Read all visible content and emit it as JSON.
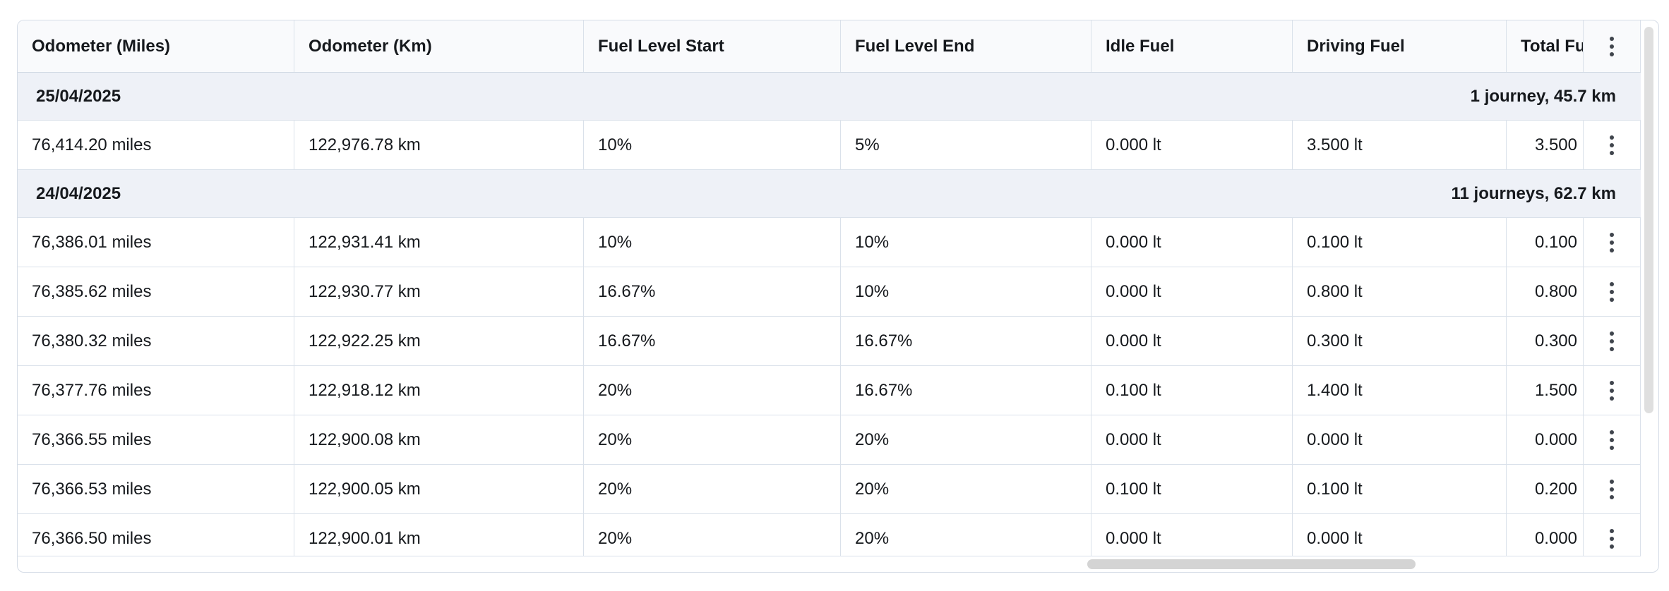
{
  "table": {
    "columns": [
      {
        "label": "Odometer (Miles)"
      },
      {
        "label": "Odometer (Km)"
      },
      {
        "label": "Fuel Level Start"
      },
      {
        "label": "Fuel Level End"
      },
      {
        "label": "Idle Fuel"
      },
      {
        "label": "Driving Fuel"
      },
      {
        "label": "Total Fuel"
      }
    ],
    "groups": [
      {
        "date": "25/04/2025",
        "summary": "1 journey, 45.7 km",
        "rows": [
          [
            "76,414.20 miles",
            "122,976.78 km",
            "10%",
            "5%",
            "0.000 lt",
            "3.500 lt",
            "3.500"
          ]
        ]
      },
      {
        "date": "24/04/2025",
        "summary": "11 journeys, 62.7 km",
        "rows": [
          [
            "76,386.01 miles",
            "122,931.41 km",
            "10%",
            "10%",
            "0.000 lt",
            "0.100 lt",
            "0.100"
          ],
          [
            "76,385.62 miles",
            "122,930.77 km",
            "16.67%",
            "10%",
            "0.000 lt",
            "0.800 lt",
            "0.800"
          ],
          [
            "76,380.32 miles",
            "122,922.25 km",
            "16.67%",
            "16.67%",
            "0.000 lt",
            "0.300 lt",
            "0.300"
          ],
          [
            "76,377.76 miles",
            "122,918.12 km",
            "20%",
            "16.67%",
            "0.100 lt",
            "1.400 lt",
            "1.500"
          ],
          [
            "76,366.55 miles",
            "122,900.08 km",
            "20%",
            "20%",
            "0.000 lt",
            "0.000 lt",
            "0.000"
          ],
          [
            "76,366.53 miles",
            "122,900.05 km",
            "20%",
            "20%",
            "0.100 lt",
            "0.100 lt",
            "0.200"
          ],
          [
            "76,366.50 miles",
            "122,900.01 km",
            "20%",
            "20%",
            "0.000 lt",
            "0.000 lt",
            "0.000"
          ]
        ]
      }
    ]
  },
  "icons": {
    "row_menu": "kebab-menu-icon"
  },
  "colors": {
    "header_bg": "#f9fafc",
    "group_row_bg": "#eef1f7",
    "row_border": "#dae1ea",
    "card_border": "#d5dce6",
    "text": "#16191d",
    "scrollbar_thumb": "#d4d4d4"
  }
}
